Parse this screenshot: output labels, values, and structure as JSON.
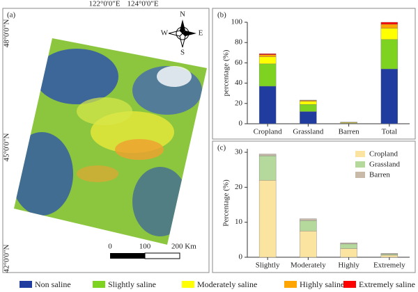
{
  "map": {
    "panel_label": "(a)",
    "lon_labels": [
      "122°0'0\"E",
      "124°0'0\"E"
    ],
    "lat_labels": [
      "48°0'0\"N",
      "45°0'0\"N",
      "42°0'0\"N"
    ],
    "compass": {
      "north": "N",
      "south": "S",
      "west": "W",
      "east": "E"
    },
    "scale_labels": [
      "0",
      "100",
      "200 Km"
    ]
  },
  "chart_data": [
    {
      "type": "bar",
      "stacked": true,
      "panel_label": "(b)",
      "ylabel": "percentage (%)",
      "categories": [
        "Cropland",
        "Grassland",
        "Barren",
        "Total"
      ],
      "series": [
        {
          "name": "Non saline",
          "color": "#1f3c9e",
          "values": [
            37,
            12,
            0.2,
            54
          ]
        },
        {
          "name": "Slightly saline",
          "color": "#7ed321",
          "values": [
            22,
            7,
            0.3,
            29
          ]
        },
        {
          "name": "Moderately saline",
          "color": "#ffff00",
          "values": [
            7,
            3,
            0.6,
            11
          ]
        },
        {
          "name": "Highly saline",
          "color": "#ffa500",
          "values": [
            2,
            1,
            0.4,
            4
          ]
        },
        {
          "name": "Extremely saline",
          "color": "#ff0000",
          "values": [
            1,
            0.3,
            0.1,
            2
          ]
        }
      ],
      "ylim": [
        0,
        100
      ],
      "yticks": [
        0,
        20,
        40,
        60,
        80,
        100
      ],
      "legend": "bottom"
    },
    {
      "type": "bar",
      "stacked": true,
      "panel_label": "(c)",
      "ylabel": "Percentage (%)",
      "categories": [
        "Slightly",
        "Moderately",
        "Highly",
        "Extremely"
      ],
      "series": [
        {
          "name": "Cropland",
          "color": "#fbe3a0",
          "values": [
            22,
            7.5,
            2.5,
            0.6
          ]
        },
        {
          "name": "Grassland",
          "color": "#b5d99c",
          "values": [
            7,
            3,
            1.3,
            0.3
          ]
        },
        {
          "name": "Barren",
          "color": "#c9b9a9",
          "values": [
            0.5,
            0.5,
            0.3,
            0.2
          ]
        }
      ],
      "ylim": [
        0,
        31
      ],
      "yticks": [
        0,
        10,
        20,
        30
      ],
      "legend": "upper right"
    }
  ]
}
